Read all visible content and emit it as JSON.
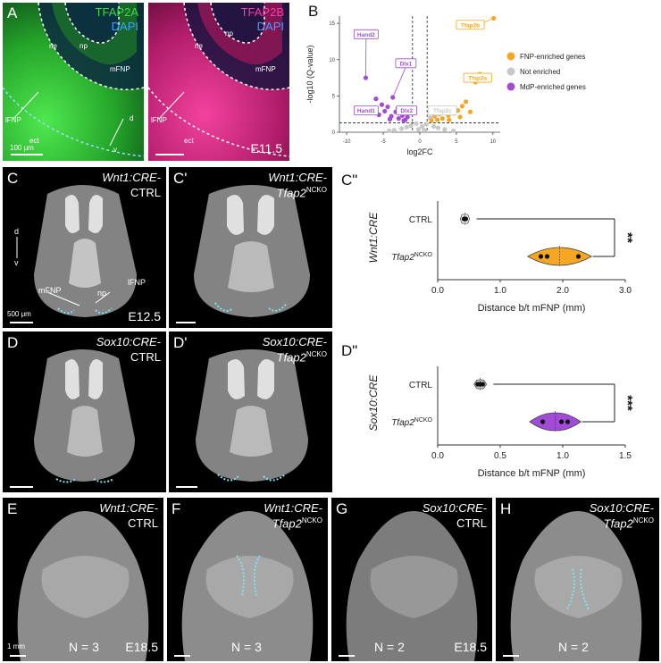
{
  "figure": {
    "panels": {
      "A": {
        "label": "A",
        "marker1": "TFAP2A",
        "marker2": "DAPI",
        "marker1_color": "#3ddc3d",
        "marker2_color": "#3fa0ff",
        "tissue": [
          "ne",
          "np",
          "mFNP",
          "lFNP",
          "ect",
          "d",
          "v"
        ],
        "scalebar": "100 μm"
      },
      "A2": {
        "marker1": "TFAP2B",
        "marker2": "DAPI",
        "marker1_color": "#ff3aa6",
        "marker2_color": "#3fa0ff",
        "tissue": [
          "ne",
          "np",
          "mFNP",
          "lFNP",
          "ect"
        ],
        "stage": "E11.5"
      },
      "B": {
        "label": "B"
      },
      "C": {
        "label": "C",
        "title_italic": "Wnt1:CRE-",
        "title_plain": "CTRL",
        "d": "d",
        "v": "v",
        "mfnp": "mFNP",
        "np": "np",
        "lfnp": "lFNP",
        "scalebar": "500 μm",
        "stage": "E12.5"
      },
      "C1": {
        "label": "C'",
        "title_italic": "Wnt1:CRE-",
        "title_sub": "Tfap2",
        "title_sup": "NCKO"
      },
      "C2": {
        "label": "C\""
      },
      "D": {
        "label": "D",
        "title_italic": "Sox10:CRE-",
        "title_plain": "CTRL"
      },
      "D1": {
        "label": "D'",
        "title_italic": "Sox10:CRE-",
        "title_sub": "Tfap2",
        "title_sup": "NCKO"
      },
      "D2": {
        "label": "D\""
      },
      "E": {
        "label": "E",
        "title_italic": "Wnt1:CRE-",
        "title_plain": "CTRL",
        "n": "N = 3",
        "stage": "E18.5",
        "scalebar": "1 mm"
      },
      "F": {
        "label": "F",
        "title_italic": "Wnt1:CRE-",
        "title_sub": "Tfap2",
        "title_sup": "NCKO",
        "n": "N = 3"
      },
      "G": {
        "label": "G",
        "title_italic": "Sox10:CRE-",
        "title_plain": "CTRL",
        "n": "N = 2",
        "stage": "E18.5"
      },
      "H": {
        "label": "H",
        "title_italic": "Sox10:CRE-",
        "title_sub": "Tfap2",
        "title_sup": "NCKO",
        "n": "N = 2"
      }
    }
  },
  "chart_data": [
    {
      "type": "scatter",
      "panel": "B",
      "xlabel": "log2FC",
      "ylabel": "-log10 (Q-value)",
      "xlim": [
        -11,
        11
      ],
      "ylim": [
        0,
        16
      ],
      "x_ticks": [
        "-10",
        "-5",
        "0",
        "5",
        "10"
      ],
      "y_ticks": [
        "0",
        "5",
        "10",
        "15"
      ],
      "thresholds": {
        "x": [
          -1,
          1
        ],
        "y": 1.3
      },
      "legend": [
        {
          "name": "FNP-enriched genes",
          "color": "#f5a623"
        },
        {
          "name": "Not enriched",
          "color": "#c8c8c8"
        },
        {
          "name": "MdP-enriched genes",
          "color": "#a24bd6"
        }
      ],
      "legend_position": "right",
      "gene_labels": [
        {
          "name": "Hand2",
          "x": -7.4,
          "y": 7.5,
          "group": "MdP"
        },
        {
          "name": "Dlx1",
          "x": -3.7,
          "y": 4.8,
          "group": "MdP"
        },
        {
          "name": "Hand1",
          "x": -6.5,
          "y": 3.3,
          "group": "MdP"
        },
        {
          "name": "Dlx2",
          "x": -2.6,
          "y": 2.6,
          "group": "MdP"
        },
        {
          "name": "Tfap2b",
          "x": 10.1,
          "y": 15.7,
          "group": "FNP"
        },
        {
          "name": "Tfap2a",
          "x": 8.2,
          "y": 8.0,
          "group": "FNP"
        },
        {
          "name": "Tfap2c",
          "x": 1.4,
          "y": 2.0,
          "group": "None"
        }
      ],
      "points": {
        "MdP": [
          [
            -7.4,
            7.5
          ],
          [
            -6.5,
            3.3
          ],
          [
            -3.7,
            4.8
          ],
          [
            -2.6,
            2.6
          ],
          [
            -6.0,
            4.6
          ],
          [
            -5.2,
            3.8
          ],
          [
            -4.8,
            2.9
          ],
          [
            -4.4,
            3.5
          ],
          [
            -3.9,
            2.2
          ],
          [
            -3.3,
            2.8
          ],
          [
            -2.9,
            1.9
          ],
          [
            -2.4,
            2.3
          ],
          [
            -2.0,
            1.7
          ],
          [
            -1.7,
            2.1
          ],
          [
            -5.6,
            2.4
          ],
          [
            -4.1,
            1.8
          ],
          [
            -3.0,
            3.3
          ],
          [
            -2.2,
            1.6
          ]
        ],
        "FNP": [
          [
            10.1,
            15.7
          ],
          [
            8.2,
            8.0
          ],
          [
            7.6,
            6.9
          ],
          [
            6.3,
            4.2
          ],
          [
            5.8,
            3.6
          ],
          [
            5.2,
            3.0
          ],
          [
            4.7,
            2.6
          ],
          [
            4.3,
            3.3
          ],
          [
            3.9,
            2.3
          ],
          [
            3.5,
            2.9
          ],
          [
            3.1,
            1.9
          ],
          [
            2.7,
            2.5
          ],
          [
            2.4,
            1.7
          ],
          [
            2.0,
            2.2
          ],
          [
            1.6,
            1.6
          ],
          [
            6.9,
            2.8
          ],
          [
            5.5,
            2.1
          ],
          [
            4.0,
            1.7
          ]
        ],
        "None": [
          [
            1.4,
            2.0
          ],
          [
            -0.5,
            1.2
          ],
          [
            0.3,
            0.8
          ],
          [
            -1.2,
            0.9
          ],
          [
            0.9,
            1.1
          ],
          [
            -2.5,
            0.5
          ],
          [
            2.5,
            0.6
          ],
          [
            -3.5,
            0.3
          ],
          [
            3.4,
            0.4
          ],
          [
            -0.2,
            0.4
          ],
          [
            0.6,
            0.3
          ],
          [
            -4.2,
            0.2
          ],
          [
            4.6,
            0.2
          ],
          [
            -1.8,
            0.7
          ],
          [
            1.9,
            0.8
          ]
        ]
      }
    },
    {
      "type": "violin",
      "panel": "C''",
      "group_label": "Wnt1:CRE",
      "xlabel": "Distance b/t mFNP (mm)",
      "xlim": [
        0,
        3
      ],
      "x_ticks": [
        "0.0",
        "1.0",
        "2.0",
        "3.0"
      ],
      "categories": [
        {
          "name": "CTRL",
          "values": [
            0.42,
            0.43,
            0.45
          ],
          "color": "#ffffff"
        },
        {
          "name": "Tfap2",
          "sup": "NCKO",
          "values": [
            1.65,
            1.75,
            2.25
          ],
          "color": "#f5a623"
        }
      ],
      "significance": "**"
    },
    {
      "type": "violin",
      "panel": "D''",
      "group_label": "Sox10:CRE",
      "xlabel": "Distance b/t mFNP (mm)",
      "xlim": [
        0,
        1.5
      ],
      "x_ticks": [
        "0.0",
        "0.5",
        "1.0",
        "1.5"
      ],
      "categories": [
        {
          "name": "CTRL",
          "values": [
            0.32,
            0.34,
            0.36
          ],
          "color": "#cccccc"
        },
        {
          "name": "Tfap2",
          "sup": "NCKO",
          "values": [
            0.84,
            0.99,
            1.04
          ],
          "color": "#a24bd6"
        }
      ],
      "significance": "***"
    }
  ]
}
